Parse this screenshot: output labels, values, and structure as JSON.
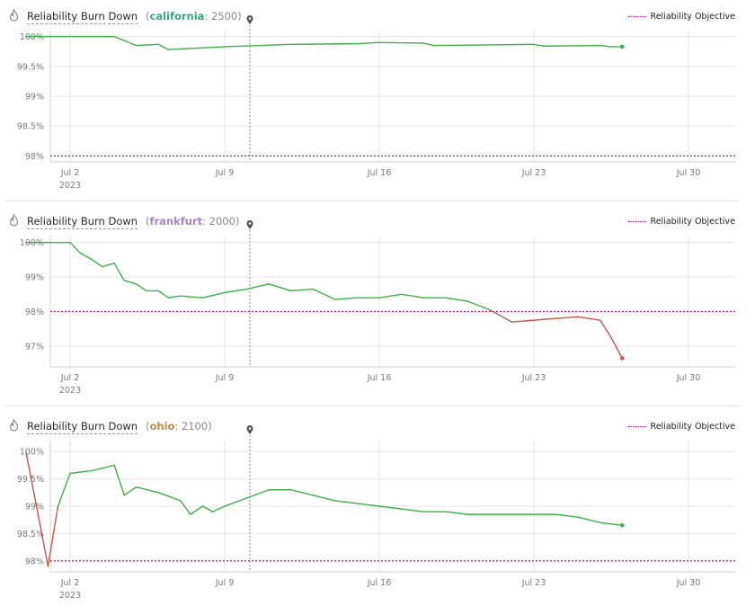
{
  "panels": [
    {
      "title": "Reliability Burn Down",
      "region": "california",
      "region_color": "#3aa389",
      "value": "2500",
      "legend_label": "Reliability Objective"
    },
    {
      "title": "Reliability Burn Down",
      "region": "frankfurt",
      "region_color": "#a884c4",
      "value": "2000",
      "legend_label": "Reliability Objective"
    },
    {
      "title": "Reliability Burn Down",
      "region": "ohio",
      "region_color": "#c0894a",
      "value": "2100",
      "legend_label": "Reliability Objective"
    }
  ],
  "colors": {
    "line_ok": "#3fae49",
    "line_breach": "#c0574b",
    "objective": "#b0237a",
    "marker": "#555555",
    "grid": "#e6e6e6"
  },
  "chart_data": [
    {
      "type": "line",
      "title": "Reliability Burn Down",
      "series": [
        {
          "name": "california",
          "x": [
            "2023-06-30",
            "2023-07-04",
            "2023-07-05",
            "2023-07-06",
            "2023-07-06",
            "2023-07-09",
            "2023-07-12",
            "2023-07-15",
            "2023-07-16",
            "2023-07-18",
            "2023-07-18",
            "2023-07-21",
            "2023-07-23",
            "2023-07-23",
            "2023-07-26",
            "2023-07-26",
            "2023-07-27"
          ],
          "values": [
            100,
            100,
            99.85,
            99.87,
            99.78,
            99.83,
            99.87,
            99.88,
            99.9,
            99.89,
            99.85,
            99.86,
            99.87,
            99.84,
            99.85,
            99.83,
            99.83
          ]
        }
      ],
      "objective": 98,
      "marker_date": "2023-07-10",
      "ylim": [
        97.9,
        100.1
      ],
      "y_ticks": [
        "100%",
        "99.5%",
        "99%",
        "98.5%",
        "98%"
      ],
      "x_ticks": [
        "Jul 2",
        "Jul 9",
        "Jul 16",
        "Jul 23",
        "Jul 30"
      ],
      "x_year": "2023"
    },
    {
      "type": "line",
      "title": "Reliability Burn Down",
      "series": [
        {
          "name": "frankfurt",
          "x": [
            "2023-06-30",
            "2023-07-02",
            "2023-07-02",
            "2023-07-03",
            "2023-07-03",
            "2023-07-04",
            "2023-07-04",
            "2023-07-05",
            "2023-07-05",
            "2023-07-06",
            "2023-07-06",
            "2023-07-07",
            "2023-07-08",
            "2023-07-09",
            "2023-07-10",
            "2023-07-11",
            "2023-07-12",
            "2023-07-13",
            "2023-07-14",
            "2023-07-15",
            "2023-07-16",
            "2023-07-17",
            "2023-07-18",
            "2023-07-19",
            "2023-07-20",
            "2023-07-21",
            "2023-07-22",
            "2023-07-23",
            "2023-07-24",
            "2023-07-25",
            "2023-07-26",
            "2023-07-26",
            "2023-07-27"
          ],
          "values": [
            100,
            100,
            99.7,
            99.5,
            99.3,
            99.4,
            98.9,
            98.8,
            98.6,
            98.6,
            98.4,
            98.45,
            98.4,
            98.55,
            98.65,
            98.8,
            98.6,
            98.65,
            98.35,
            98.4,
            98.4,
            98.5,
            98.4,
            98.4,
            98.3,
            98.05,
            97.7,
            97.75,
            97.8,
            97.85,
            97.75,
            97.3,
            96.65
          ]
        }
      ],
      "objective": 98,
      "marker_date": "2023-07-10",
      "ylim": [
        96.4,
        100.2
      ],
      "y_ticks": [
        "100%",
        "99%",
        "98%",
        "97%"
      ],
      "x_ticks": [
        "Jul 2",
        "Jul 9",
        "Jul 16",
        "Jul 23",
        "Jul 30"
      ],
      "x_year": "2023"
    },
    {
      "type": "line",
      "title": "Reliability Burn Down",
      "series": [
        {
          "name": "ohio",
          "x": [
            "2023-06-30",
            "2023-07-01",
            "2023-07-01",
            "2023-07-02",
            "2023-07-03",
            "2023-07-04",
            "2023-07-04",
            "2023-07-05",
            "2023-07-06",
            "2023-07-07",
            "2023-07-07",
            "2023-07-08",
            "2023-07-08",
            "2023-07-09",
            "2023-07-10",
            "2023-07-11",
            "2023-07-12",
            "2023-07-13",
            "2023-07-14",
            "2023-07-15",
            "2023-07-16",
            "2023-07-17",
            "2023-07-18",
            "2023-07-19",
            "2023-07-20",
            "2023-07-21",
            "2023-07-22",
            "2023-07-23",
            "2023-07-24",
            "2023-07-25",
            "2023-07-26",
            "2023-07-27"
          ],
          "values": [
            100,
            97.9,
            99.0,
            99.6,
            99.65,
            99.75,
            99.2,
            99.35,
            99.25,
            99.1,
            98.85,
            99.0,
            98.9,
            99.0,
            99.15,
            99.3,
            99.3,
            99.2,
            99.1,
            99.05,
            99.0,
            98.95,
            98.9,
            98.9,
            98.85,
            98.85,
            98.85,
            98.85,
            98.85,
            98.8,
            98.7,
            98.65
          ]
        }
      ],
      "objective": 98,
      "marker_date": "2023-07-10",
      "ylim": [
        97.8,
        100.2
      ],
      "y_ticks": [
        "100%",
        "99.5%",
        "99%",
        "98.5%",
        "98%"
      ],
      "x_ticks": [
        "Jul 2",
        "Jul 9",
        "Jul 16",
        "Jul 23",
        "Jul 30"
      ],
      "x_year": "2023"
    }
  ]
}
